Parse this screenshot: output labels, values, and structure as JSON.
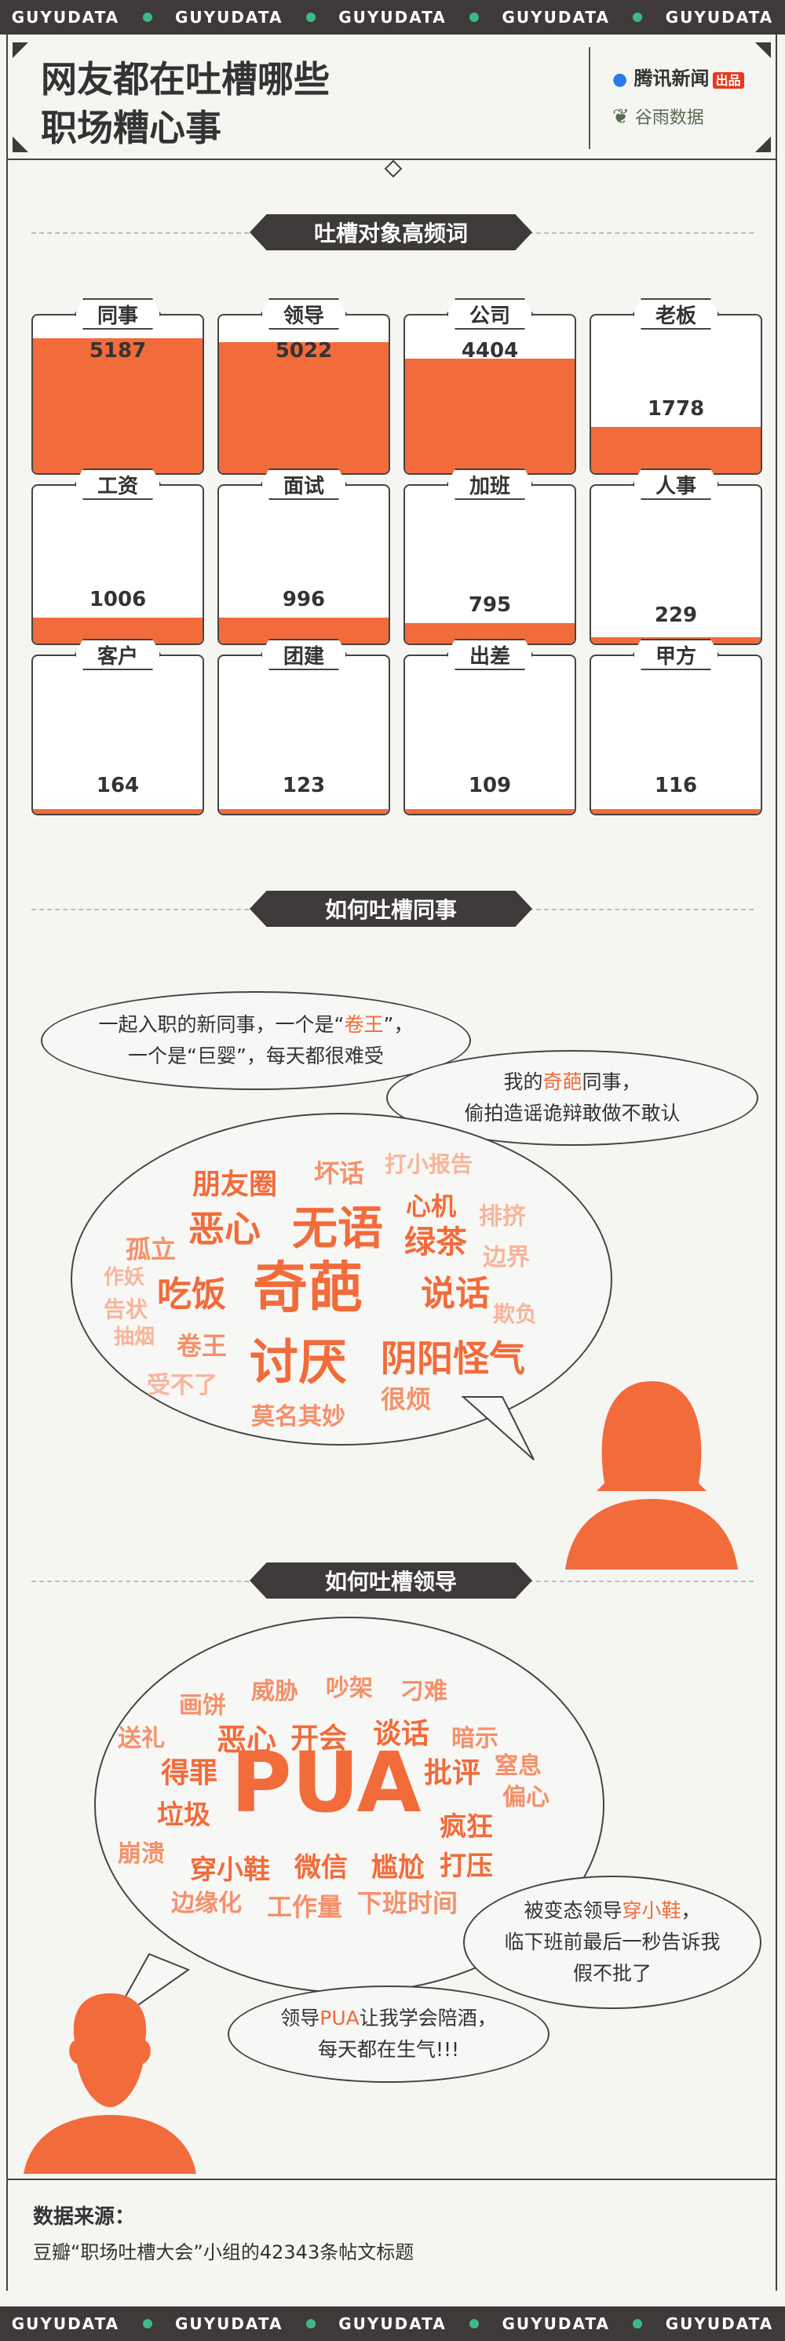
{
  "brand_band": [
    "GUYUDATA",
    "GUYUDATA",
    "GUYUDATA",
    "GUYUDATA",
    "GUYUDATA"
  ],
  "header": {
    "title_line1": "网友都在吐槽哪些",
    "title_line2": "职场糟心事",
    "logo1_main": "腾讯新闻",
    "logo1_sub": "出品",
    "logo2": "谷雨数据"
  },
  "section1": {
    "title": "吐槽对象高频词",
    "max": 5187,
    "cards": [
      {
        "label": "同事",
        "value": "5187",
        "n": 5187
      },
      {
        "label": "领导",
        "value": "5022",
        "n": 5022
      },
      {
        "label": "公司",
        "value": "4404",
        "n": 4404
      },
      {
        "label": "老板",
        "value": "1778",
        "n": 1778
      },
      {
        "label": "工资",
        "value": "1006",
        "n": 1006
      },
      {
        "label": "面试",
        "value": "996",
        "n": 996
      },
      {
        "label": "加班",
        "value": "795",
        "n": 795
      },
      {
        "label": "人事",
        "value": "229",
        "n": 229
      },
      {
        "label": "客户",
        "value": "164",
        "n": 164
      },
      {
        "label": "团建",
        "value": "123",
        "n": 123
      },
      {
        "label": "出差",
        "value": "109",
        "n": 109
      },
      {
        "label": "甲方",
        "value": "116",
        "n": 116
      }
    ]
  },
  "section2": {
    "title": "如何吐槽同事",
    "quote1": {
      "a": "一起入职的新同事，一个是“",
      "hl": "卷王",
      "b": "”，",
      "line2": "一个是“巨婴”，每天都很难受"
    },
    "quote2": {
      "a": "我的",
      "hl": "奇葩",
      "b": "同事，",
      "line2": "偷拍造谣诡辩敢做不敢认"
    },
    "words": [
      "朋友圈",
      "坏话",
      "打小报告",
      "恶心",
      "无语",
      "心机",
      "排挤",
      "孤立",
      "绿茶",
      "边界",
      "作妖",
      "吃饭",
      "奇葩",
      "说话",
      "欺负",
      "告状",
      "抽烟",
      "卷王",
      "讨厌",
      "阴阳怪气",
      "受不了",
      "很烦",
      "莫名其妙"
    ]
  },
  "section3": {
    "title": "如何吐槽领导",
    "quote1": {
      "a": "被变态领导",
      "hl": "穿小鞋",
      "b": "，",
      "line2": "临下班前最后一秒告诉我",
      "line3": "假不批了"
    },
    "quote2": {
      "a": "领导",
      "hl": "PUA",
      "b": "让我学会陪酒，",
      "line2": "每天都在生气!!!"
    },
    "words": [
      "威胁",
      "吵架",
      "画饼",
      "刁难",
      "送礼",
      "恶心",
      "开会",
      "谈话",
      "暗示",
      "得罪",
      "PUA",
      "批评",
      "窒息",
      "垃圾",
      "偏心",
      "疯狂",
      "崩溃",
      "穿小鞋",
      "微信",
      "尴尬",
      "打压",
      "边缘化",
      "工作量",
      "下班时间"
    ]
  },
  "source": {
    "title": "数据来源：",
    "text": "豆瓣“职场吐槽大会”小组的42343条帖文标题"
  },
  "colors": {
    "accent": "#f26b3a",
    "dark": "#3d3a39",
    "brand_dot": "#3bb98a",
    "background": "#f5f5f2"
  }
}
